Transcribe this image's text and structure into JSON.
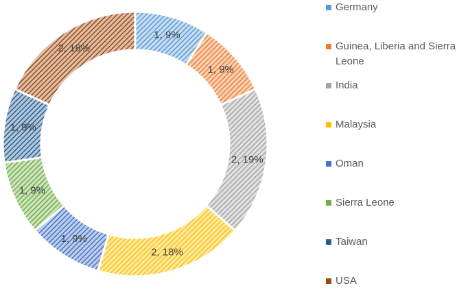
{
  "chart_data": {
    "type": "donut",
    "categories": [
      "Germany",
      "Guinea, Liberia and Sierra Leone",
      "India",
      "Malaysia",
      "Oman",
      "Sierra Leone",
      "Taiwan",
      "USA"
    ],
    "values": [
      1,
      1,
      2,
      2,
      1,
      1,
      1,
      2
    ],
    "value_labels": [
      "1, 9%",
      "1, 9%",
      "2, 19%",
      "2, 18%",
      "1, 9%",
      "1, 9%",
      "1, 9%",
      "2, 18%"
    ],
    "colors": [
      "#5b9bd5",
      "#ed7d31",
      "#a5a5a5",
      "#ffc000",
      "#4472c4",
      "#70ad47",
      "#255e91",
      "#9e480e"
    ],
    "legend": "right"
  }
}
